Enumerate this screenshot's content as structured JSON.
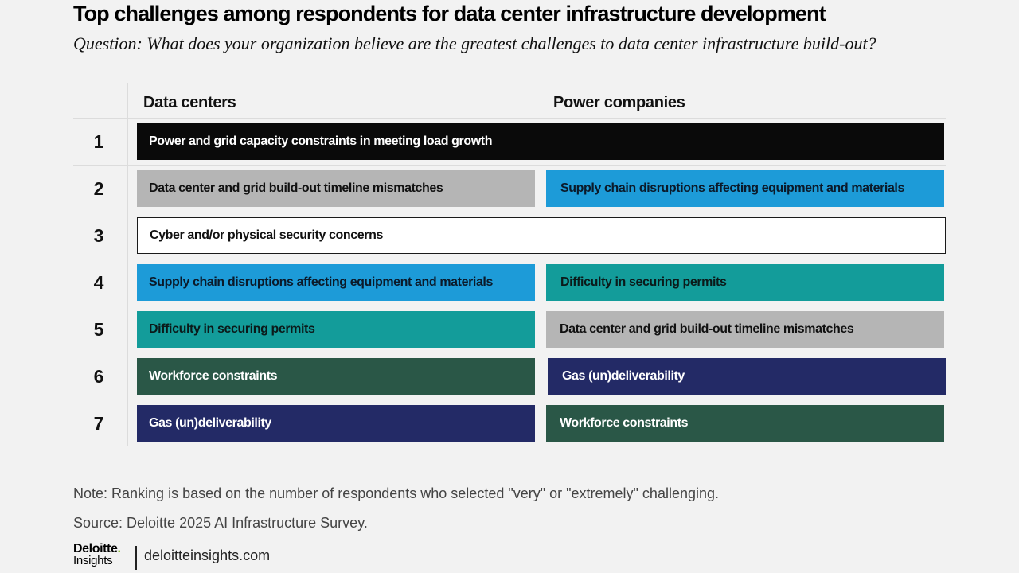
{
  "title": "Top challenges among respondents for data center infrastructure development",
  "subtitle": "Question: What does your organization believe are the greatest challenges to data center infrastructure build-out?",
  "columns": {
    "data_centers": "Data centers",
    "power_companies": "Power companies"
  },
  "rows": [
    {
      "rank": "1",
      "data_centers": "Power and grid capacity constraints in meeting load growth",
      "power_companies": "",
      "merged": true,
      "color": "#0a0a0a"
    },
    {
      "rank": "2",
      "data_centers": "Data center and grid build-out timeline mismatches",
      "power_companies": "Supply chain disruptions affecting equipment and materials",
      "dc_color": "#b5b5b5",
      "pc_color": "#1d9bd8"
    },
    {
      "rank": "3",
      "data_centers": "Cyber and/or physical security concerns",
      "power_companies": "",
      "merged": true,
      "color": "#ffffff"
    },
    {
      "rank": "4",
      "data_centers": "Supply chain disruptions affecting equipment and materials",
      "power_companies": "Difficulty in securing permits",
      "dc_color": "#1d9bd8",
      "pc_color": "#139c9a"
    },
    {
      "rank": "5",
      "data_centers": "Difficulty in securing permits",
      "power_companies": "Data center and grid build-out timeline mismatches",
      "dc_color": "#139c9a",
      "pc_color": "#b5b5b5"
    },
    {
      "rank": "6",
      "data_centers": "Workforce constraints",
      "power_companies": "Gas (un)deliverability",
      "dc_color": "#2a5747",
      "pc_color": "#232a66"
    },
    {
      "rank": "7",
      "data_centers": "Gas (un)deliverability",
      "power_companies": "Workforce constraints",
      "dc_color": "#232a66",
      "pc_color": "#2a5747"
    }
  ],
  "note": "Note:  Ranking is based on the number of respondents who selected \"very\" or \"extremely\" challenging.",
  "source": "Source: Deloitte 2025 AI Infrastructure Survey.",
  "logo": {
    "brand": "Deloitte",
    "dot": ".",
    "sub": "Insights"
  },
  "website": "deloitteinsights.com"
}
